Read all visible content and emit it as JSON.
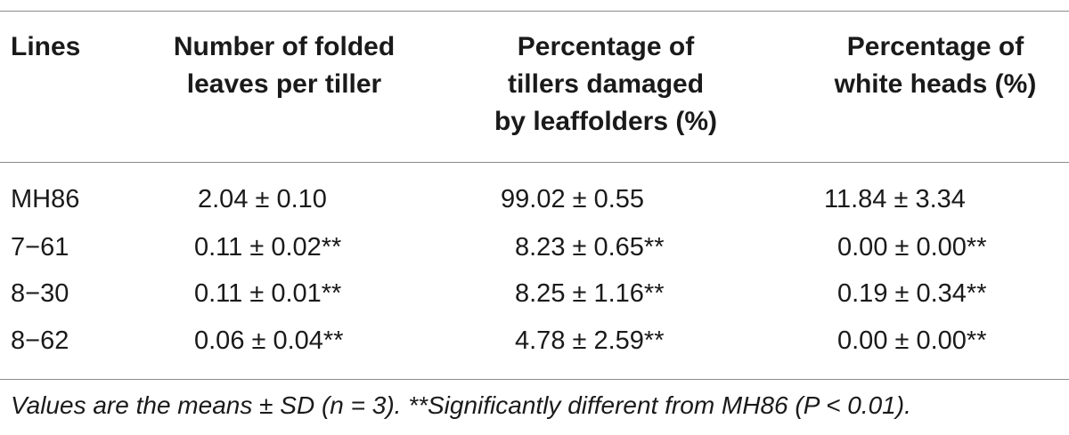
{
  "table": {
    "headers": [
      [
        "Lines"
      ],
      [
        "Number of folded",
        "leaves per tiller"
      ],
      [
        "Percentage of",
        "tillers damaged",
        "by leaffolders (%)"
      ],
      [
        "Percentage of",
        "white heads (%)"
      ]
    ],
    "rows": [
      {
        "line": "MH86",
        "folded_leaves": "2.04 ± 0.10",
        "tillers_damaged": "99.02 ± 0.55",
        "white_heads": "11.84 ± 3.34"
      },
      {
        "line": "7−61",
        "folded_leaves": "0.11 ± 0.02**",
        "tillers_damaged": "8.23 ± 0.65**",
        "white_heads": "0.00 ± 0.00**"
      },
      {
        "line": "8−30",
        "folded_leaves": "0.11 ± 0.01**",
        "tillers_damaged": "8.25 ± 1.16**",
        "white_heads": "0.19 ± 0.34**"
      },
      {
        "line": "8−62",
        "folded_leaves": "0.06 ± 0.04**",
        "tillers_damaged": "4.78 ± 2.59**",
        "white_heads": "0.00 ± 0.00**"
      }
    ],
    "footnote": "Values are the means ± SD (n = 3). **Significantly different from MH86 (P < 0.01)."
  }
}
